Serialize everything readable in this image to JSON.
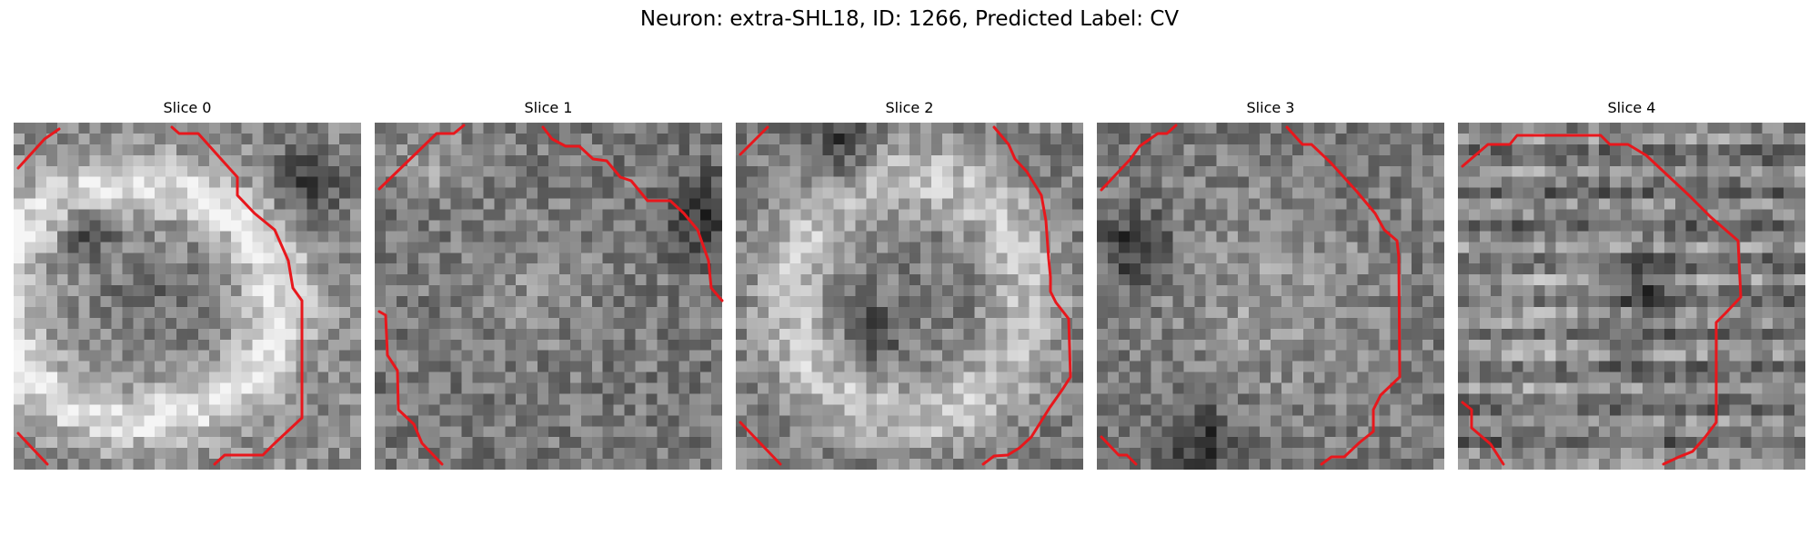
{
  "figure": {
    "title": "Neuron: extra-SHL18, ID: 1266, Predicted Label: CV"
  },
  "colors": {
    "contour": "#e8171c",
    "colormap": "grayscale"
  },
  "slices": [
    {
      "title": "Slice 0"
    },
    {
      "title": "Slice 1"
    },
    {
      "title": "Slice 2"
    },
    {
      "title": "Slice 3"
    },
    {
      "title": "Slice 4"
    }
  ]
}
